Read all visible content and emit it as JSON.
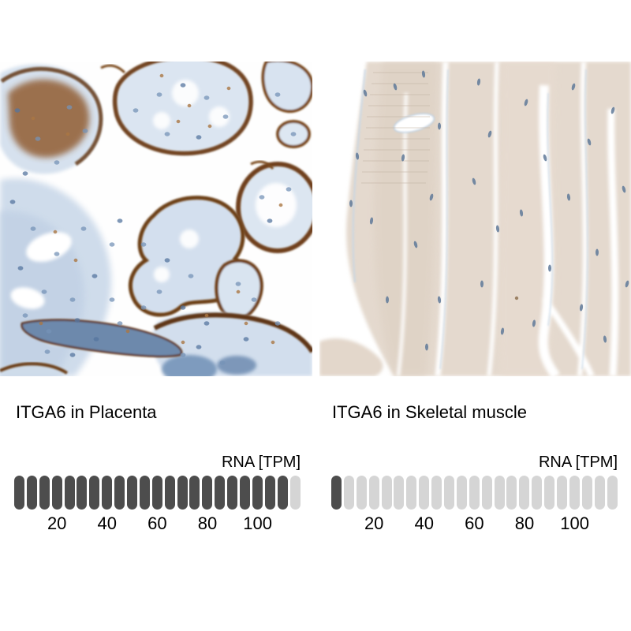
{
  "panels": [
    {
      "caption": "ITGA6 in Placenta"
    },
    {
      "caption": "ITGA6 in Skeletal muscle"
    }
  ],
  "chart_data": [
    {
      "type": "bar",
      "subtype": "segmented-unit-bar",
      "title": "ITGA6 in Placenta",
      "unit_label": "RNA [TPM]",
      "segments_total": 23,
      "segments_filled": 22,
      "tpm_per_segment": 5,
      "approx_value_tpm": 110,
      "axis_ticks": [
        20,
        40,
        60,
        80,
        100
      ],
      "xlim": [
        0,
        115
      ],
      "filled_color": "#4d4d4d",
      "empty_color": "#d5d5d5",
      "grid": false,
      "legend": "none"
    },
    {
      "type": "bar",
      "subtype": "segmented-unit-bar",
      "title": "ITGA6 in Skeletal muscle",
      "unit_label": "RNA [TPM]",
      "segments_total": 23,
      "segments_filled": 1,
      "tpm_per_segment": 5,
      "approx_value_tpm": 5,
      "axis_ticks": [
        20,
        40,
        60,
        80,
        100
      ],
      "xlim": [
        0,
        115
      ],
      "filled_color": "#4d4d4d",
      "empty_color": "#d5d5d5",
      "grid": false,
      "legend": "none"
    }
  ]
}
